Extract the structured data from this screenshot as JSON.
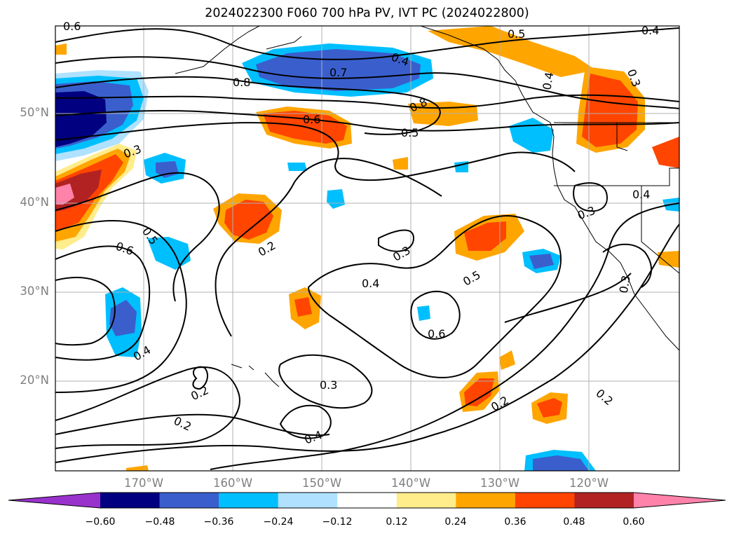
{
  "title": "2024022300 F060 700 hPa PV, IVT PC (2024022800)",
  "lat_labels": [
    "50°N",
    "40°N",
    "30°N",
    "20°N"
  ],
  "lon_labels": [
    "170°W",
    "160°W",
    "150°W",
    "140°W",
    "130°W",
    "120°W"
  ],
  "colorbar": {
    "colors": [
      "#9932cc",
      "#000080",
      "#3a5fcd",
      "#00bfff",
      "#b0e2ff",
      "#ffffff",
      "#ffec8b",
      "#ffa500",
      "#ff4500",
      "#b22222",
      "#ff82ab"
    ],
    "tick_labels": [
      "−0.60",
      "−0.48",
      "−0.36",
      "−0.24",
      "−0.12",
      "0.12",
      "0.24",
      "0.36",
      "0.48",
      "0.60"
    ]
  },
  "contour_labels": [
    "0.6",
    "0.4",
    "0.5",
    "0.4",
    "0.7",
    "0.8",
    "0.3",
    "0.4",
    "0.6",
    "0.8",
    "0.5",
    "0.3",
    "0.4",
    "0.3",
    "0.5",
    "0.6",
    "0.2",
    "0.3",
    "0.5",
    "0.4",
    "0.6",
    "0.3",
    "0.4",
    "0.2",
    "0.2",
    "0.3",
    "0.4",
    "0.2",
    "0.2"
  ]
}
